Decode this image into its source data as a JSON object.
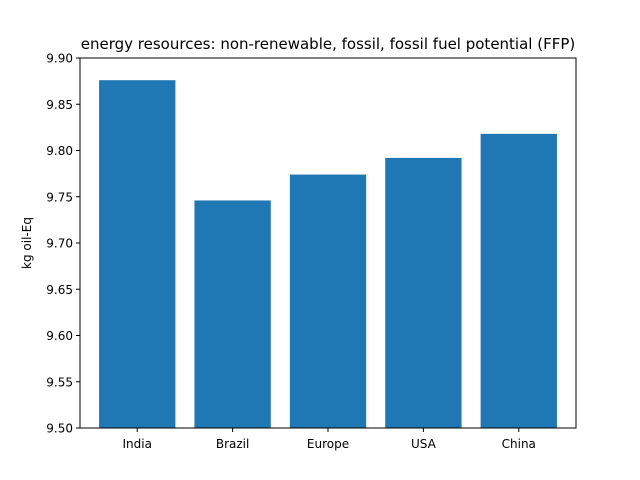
{
  "chart_data": {
    "type": "bar",
    "title": "energy resources: non-renewable, fossil, fossil fuel potential (FFP)",
    "xlabel": "",
    "ylabel": "kg oil-Eq",
    "categories": [
      "India",
      "Brazil",
      "Europe",
      "USA",
      "China"
    ],
    "values": [
      9.876,
      9.746,
      9.774,
      9.792,
      9.818
    ],
    "ylim": [
      9.5,
      9.9
    ],
    "yticks": [
      "9.50",
      "9.55",
      "9.60",
      "9.65",
      "9.70",
      "9.75",
      "9.80",
      "9.85",
      "9.90"
    ],
    "bar_color": "#1f77b4",
    "grid": false,
    "legend": "none"
  }
}
